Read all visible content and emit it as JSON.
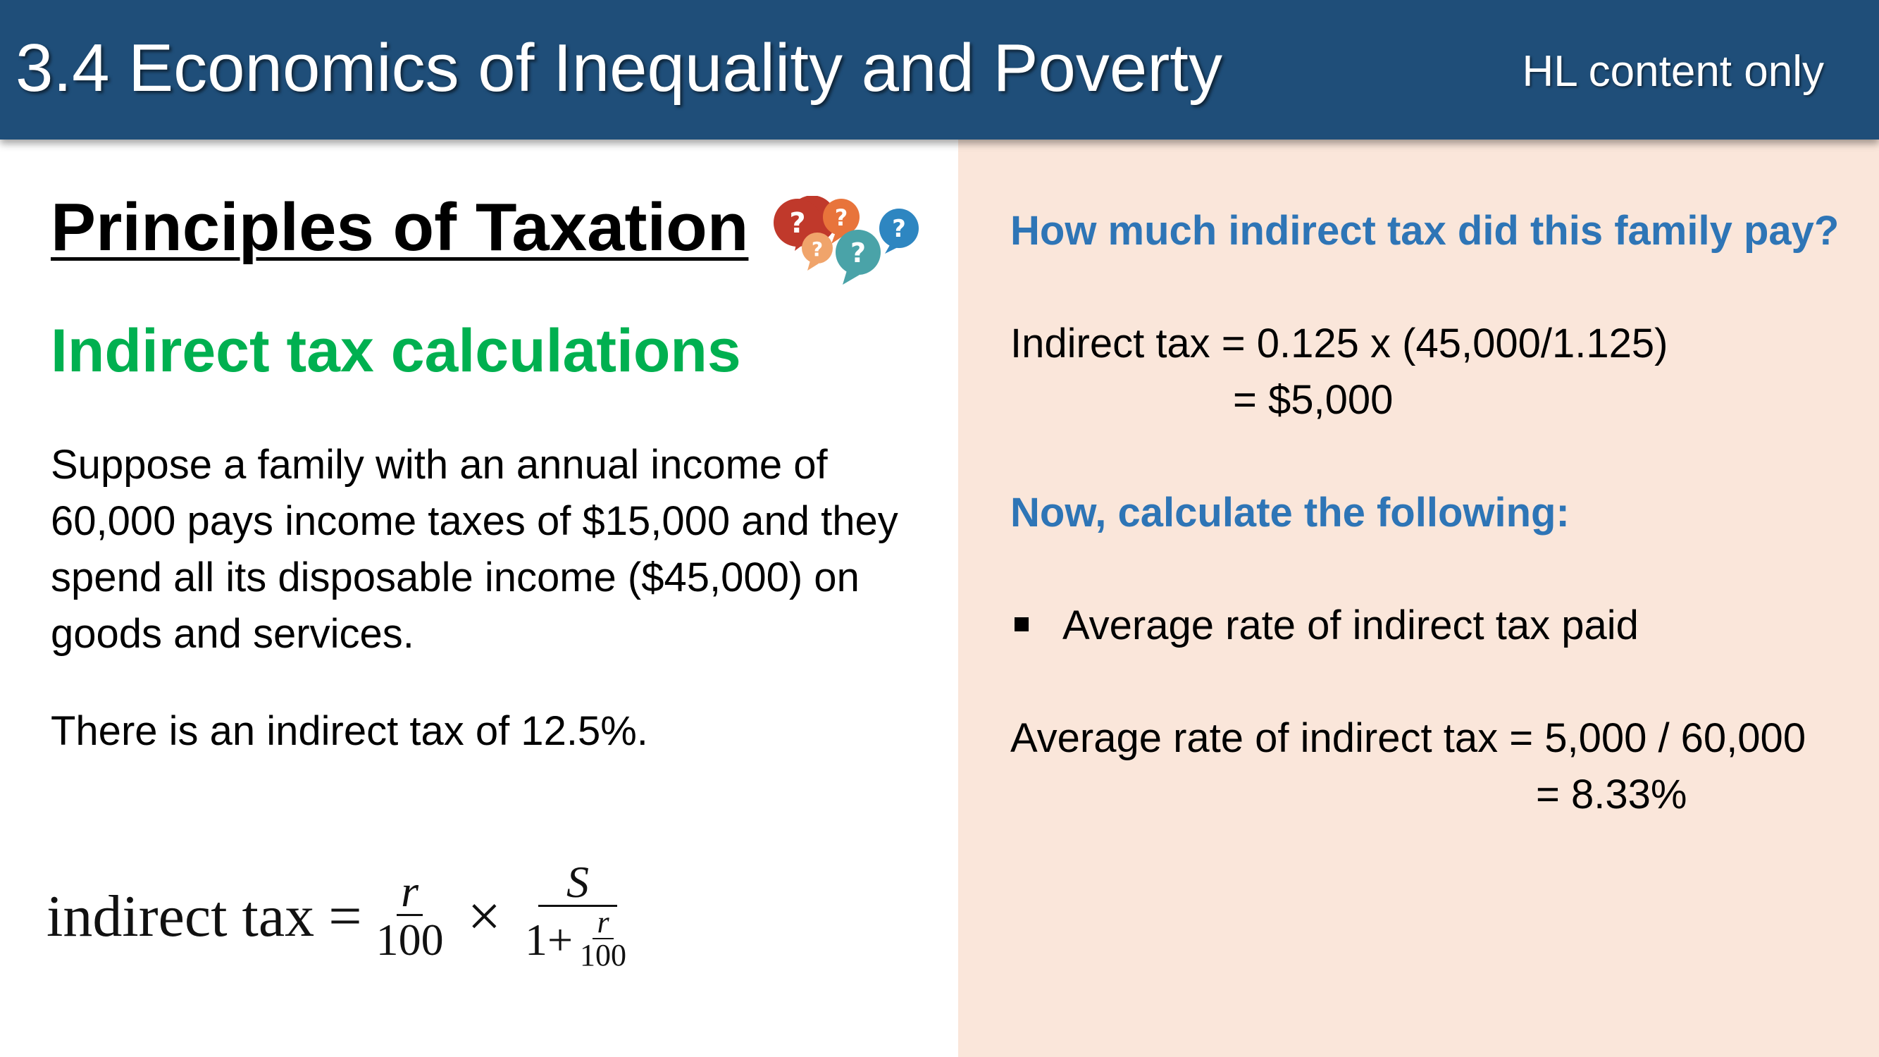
{
  "header": {
    "title": "3.4 Economics of Inequality and Poverty",
    "badge": "HL content only",
    "background_color": "#1f4e79"
  },
  "left": {
    "section_title": "Principles of Taxation",
    "subtitle": "Indirect tax calculations",
    "subtitle_color": "#00b050",
    "icon": "question-bubbles-icon",
    "paragraph1": "Suppose a family with an annual income of 60,000 pays income taxes of $15,000 and they spend all its disposable income ($45,000) on goods and services.",
    "paragraph2": "There is an indirect tax of 12.5%.",
    "formula": {
      "lhs": "indirect tax",
      "equals": "=",
      "frac1_num": "r",
      "frac1_den": "100",
      "times": "×",
      "frac2_num": "S",
      "frac2_den_prefix": "1+",
      "frac3_num": "r",
      "frac3_den": "100"
    }
  },
  "right": {
    "background_color": "#fae6da",
    "heading_color": "#2e75b6",
    "question": "How much indirect tax did this family pay?",
    "answer_line1": "Indirect tax = 0.125 x (45,000/1.125)",
    "answer_line2": "= $5,000",
    "task_heading": "Now, calculate the following:",
    "bullet": "Average rate of indirect tax paid",
    "result_line1": "Average rate of indirect tax = 5,000 / 60,000",
    "result_line2": "= 8.33%"
  }
}
